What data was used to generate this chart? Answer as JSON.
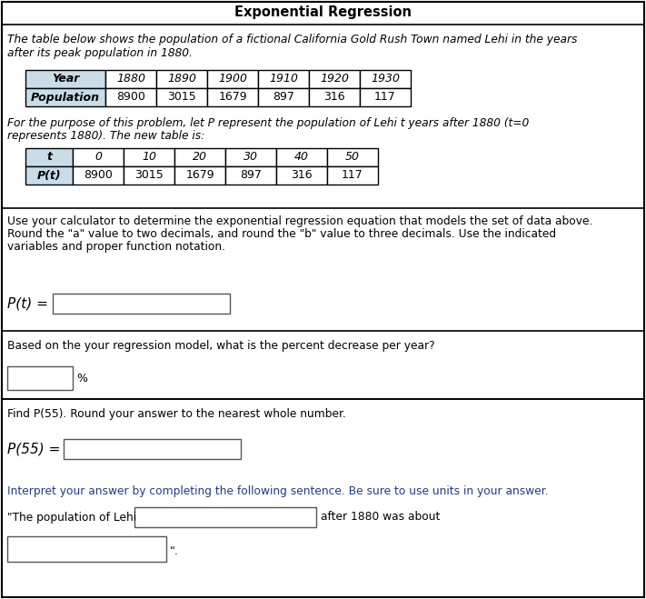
{
  "title": "Exponential Regression",
  "intro_text_line1": "The table below shows the population of a fictional California Gold Rush Town named Lehi in the years",
  "intro_text_line2": "after its peak population in 1880.",
  "table1_headers": [
    "Year",
    "1880",
    "1890",
    "1900",
    "1910",
    "1920",
    "1930"
  ],
  "table1_row": [
    "Population",
    "8900",
    "3015",
    "1679",
    "897",
    "316",
    "117"
  ],
  "para2_line1": "For the purpose of this problem, let P represent the population of Lehi t years after 1880 (t=0",
  "para2_line2": "represents 1880). The new table is:",
  "para2_P": "P",
  "table2_headers": [
    "t",
    "0",
    "10",
    "20",
    "30",
    "40",
    "50"
  ],
  "table2_row": [
    "P(t)",
    "8900",
    "3015",
    "1679",
    "897",
    "316",
    "117"
  ],
  "section3_line1": "Use your calculator to determine the exponential regression equation that models the set of data above.",
  "section3_line2": "Round the \"a\" value to two decimals, and round the \"b\" value to three decimals. Use the indicated",
  "section3_line3": "variables and proper function notation.",
  "label_pt": "P(t) =",
  "section4_text": "Based on the your regression model, what is the percent decrease per year?",
  "percent_label": "%",
  "section5_text": "Find P(55). Round your answer to the nearest whole number.",
  "label_p55": "P(55) =",
  "section6_color": "#1f3c88",
  "section6_text": "Interpret your answer by completing the following sentence. Be sure to use units in your answer.",
  "quote_start": "\"The population of Lehi",
  "quote_after": "after 1880 was about",
  "quote_end": "\".",
  "bg_color": "#ffffff",
  "border_color": "#000000",
  "header1_col0_bg": "#aaccdd",
  "header1_other_bg": "#ffffff",
  "header2_col0_bg": "#aaccdd",
  "table_border": "#000000",
  "section3_text_color": "#000000",
  "section4_text_color": "#000000",
  "section5_text_color": "#000000"
}
